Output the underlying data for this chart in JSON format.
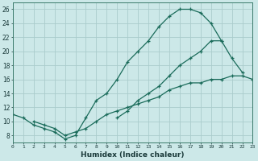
{
  "xlabel": "Humidex (Indice chaleur)",
  "ylabel": "",
  "xlim": [
    0,
    23
  ],
  "ylim": [
    7,
    27
  ],
  "xticks": [
    0,
    1,
    2,
    3,
    4,
    5,
    6,
    7,
    8,
    9,
    10,
    11,
    12,
    13,
    14,
    15,
    16,
    17,
    18,
    19,
    20,
    21,
    22,
    23
  ],
  "yticks": [
    8,
    10,
    12,
    14,
    16,
    18,
    20,
    22,
    24,
    26
  ],
  "background_color": "#cce8e8",
  "grid_color": "#aacccc",
  "line_color": "#1a6b5a",
  "line1_x": [
    0,
    1,
    2,
    3,
    4,
    5,
    6,
    7,
    8,
    9,
    10,
    11,
    12,
    13,
    14,
    15,
    16,
    17,
    18,
    19,
    20
  ],
  "line1_y": [
    11,
    10.5,
    9.5,
    9.0,
    8.5,
    7.5,
    8.0,
    10.5,
    13.0,
    14.0,
    16.0,
    18.5,
    20.0,
    21.5,
    23.5,
    25.0,
    26.0,
    26.0,
    25.5,
    24.0,
    21.5
  ],
  "line2_x": [
    10,
    11,
    12,
    13,
    14,
    15,
    16,
    17,
    18,
    19,
    20,
    21,
    22
  ],
  "line2_y": [
    10.5,
    11.5,
    13.0,
    14.0,
    15.0,
    16.5,
    18.0,
    19.0,
    20.0,
    21.5,
    21.5,
    19.0,
    17.0
  ],
  "line3_x": [
    2,
    3,
    4,
    5,
    6,
    7,
    8,
    9,
    10,
    11,
    12,
    13,
    14,
    15,
    16,
    17,
    18,
    19,
    20,
    21,
    22,
    23
  ],
  "line3_y": [
    10.0,
    9.5,
    9.0,
    8.0,
    8.5,
    9.0,
    10.0,
    11.0,
    11.5,
    12.0,
    12.5,
    13.0,
    13.5,
    14.5,
    15.0,
    15.5,
    15.5,
    16.0,
    16.0,
    16.5,
    16.5,
    16.0
  ]
}
